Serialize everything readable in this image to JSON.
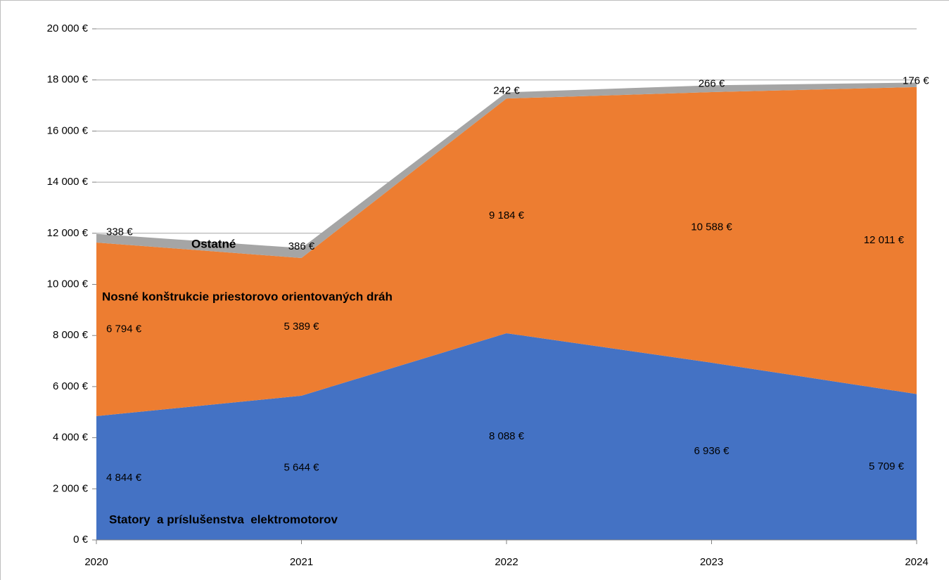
{
  "chart_data": {
    "type": "stacked_area",
    "categories": [
      "2020",
      "2021",
      "2022",
      "2023",
      "2024"
    ],
    "series": [
      {
        "name": "Statory  a príslušenstva  elektromotorov",
        "color": "#4472c4",
        "values": [
          4844,
          5644,
          8088,
          6936,
          5709
        ],
        "value_labels": [
          "4 844 €",
          "5 644 €",
          "8 088 €",
          "6 936 €",
          "5 709 €"
        ]
      },
      {
        "name": "Nosné konštrukcie priestorovo orientovaných dráh",
        "color": "#ed7d31",
        "values": [
          6794,
          5389,
          9184,
          10588,
          12011
        ],
        "value_labels": [
          "6 794 €",
          "5 389 €",
          "9 184 €",
          "10 588 €",
          "12 011 €"
        ]
      },
      {
        "name": "Ostatné",
        "color": "#a5a5a5",
        "values": [
          338,
          386,
          242,
          266,
          176
        ],
        "value_labels": [
          "338 €",
          "386 €",
          "242 €",
          "266 €",
          "176 €"
        ]
      }
    ],
    "ylim": [
      0,
      20000
    ],
    "yticks": [
      {
        "value": 0,
        "label": "0 €"
      },
      {
        "value": 2000,
        "label": "2 000 €"
      },
      {
        "value": 4000,
        "label": "4 000 €"
      },
      {
        "value": 6000,
        "label": "6 000 €"
      },
      {
        "value": 8000,
        "label": "8 000 €"
      },
      {
        "value": 10000,
        "label": "10 000 €"
      },
      {
        "value": 12000,
        "label": "12 000 €"
      },
      {
        "value": 14000,
        "label": "14 000 €"
      },
      {
        "value": 16000,
        "label": "16 000 €"
      },
      {
        "value": 18000,
        "label": "18 000 €"
      },
      {
        "value": 20000,
        "label": "20 000 €"
      }
    ],
    "grid": true
  }
}
